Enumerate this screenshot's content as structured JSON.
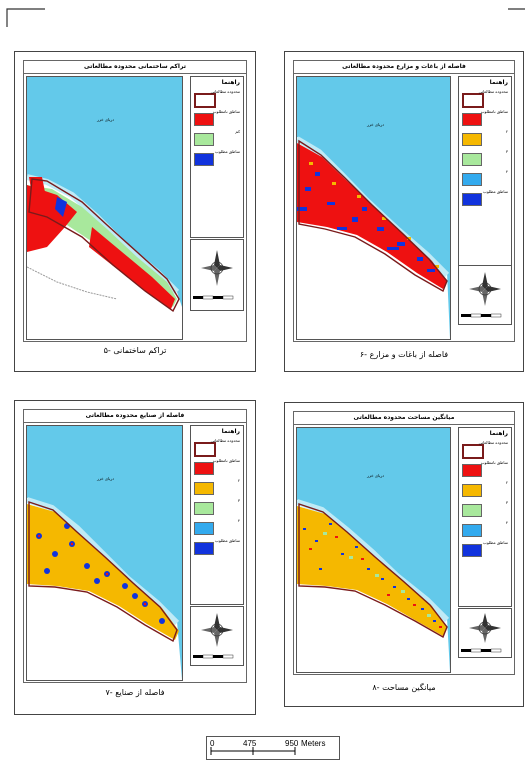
{
  "panels": [
    {
      "id": "p5",
      "title": "تراکم ساختمانی محدوده مطالعاتی",
      "caption": "۵- تراکم ساختمانی",
      "legend_title": "راهنما",
      "legend": [
        {
          "color": "#ffffff",
          "border": "#7a1b1b",
          "label": "محدوده مطالعاتی"
        },
        {
          "color": "#ee1111",
          "label": "مناطق نامطلوب"
        },
        {
          "color": "#a8e89c",
          "label": "کم"
        },
        {
          "color": "#1133dd",
          "label": "مناطق مطلوب"
        }
      ],
      "sea_label": "دریای خزر"
    },
    {
      "id": "p6",
      "title": "فاصله از باغات و مزارع محدوده مطالعاتی",
      "caption": "۶- فاصله از باغات و مزارع",
      "legend_title": "راهنما",
      "legend": [
        {
          "color": "#ffffff",
          "border": "#7a1b1b",
          "label": "محدوده مطالعاتی"
        },
        {
          "color": "#ee1111",
          "label": "مناطق نامطلوب"
        },
        {
          "color": "#f5b800",
          "label": "۲"
        },
        {
          "color": "#a8e89c",
          "label": "۳"
        },
        {
          "color": "#33aaee",
          "label": "۴"
        },
        {
          "color": "#1133dd",
          "label": "مناطق مطلوب"
        }
      ],
      "sea_label": "دریای خزر"
    },
    {
      "id": "p7",
      "title": "فاصله از صنایع محدوده مطالعاتی",
      "caption": "۷- فاصله از صنایع",
      "legend_title": "راهنما",
      "legend": [
        {
          "color": "#ffffff",
          "border": "#7a1b1b",
          "label": "محدوده مطالعاتی"
        },
        {
          "color": "#ee1111",
          "label": "مناطق نامطلوب"
        },
        {
          "color": "#f5b800",
          "label": "۲"
        },
        {
          "color": "#a8e89c",
          "label": "۳"
        },
        {
          "color": "#33aaee",
          "label": "۴"
        },
        {
          "color": "#1133dd",
          "label": "مناطق مطلوب"
        }
      ],
      "sea_label": "دریای خزر"
    },
    {
      "id": "p8",
      "title": "میانگین مساحت محدوده مطالعاتی",
      "caption": "۸- میانگین مساحت",
      "legend_title": "راهنما",
      "legend": [
        {
          "color": "#ffffff",
          "border": "#7a1b1b",
          "label": "محدوده مطالعاتی"
        },
        {
          "color": "#ee1111",
          "label": "مناطق نامطلوب"
        },
        {
          "color": "#f5b800",
          "label": "۲"
        },
        {
          "color": "#a8e89c",
          "label": "۳"
        },
        {
          "color": "#33aaee",
          "label": "۴"
        },
        {
          "color": "#1133dd",
          "label": "مناطق مطلوب"
        }
      ],
      "sea_label": "دریای خزر"
    }
  ],
  "scale_bar": {
    "ticks": [
      "0",
      "475",
      "950"
    ],
    "unit": "Meters"
  },
  "colors": {
    "sea": "#63c9ea",
    "coast": "#bfeaf6",
    "boundary": "#7a1b1b"
  }
}
